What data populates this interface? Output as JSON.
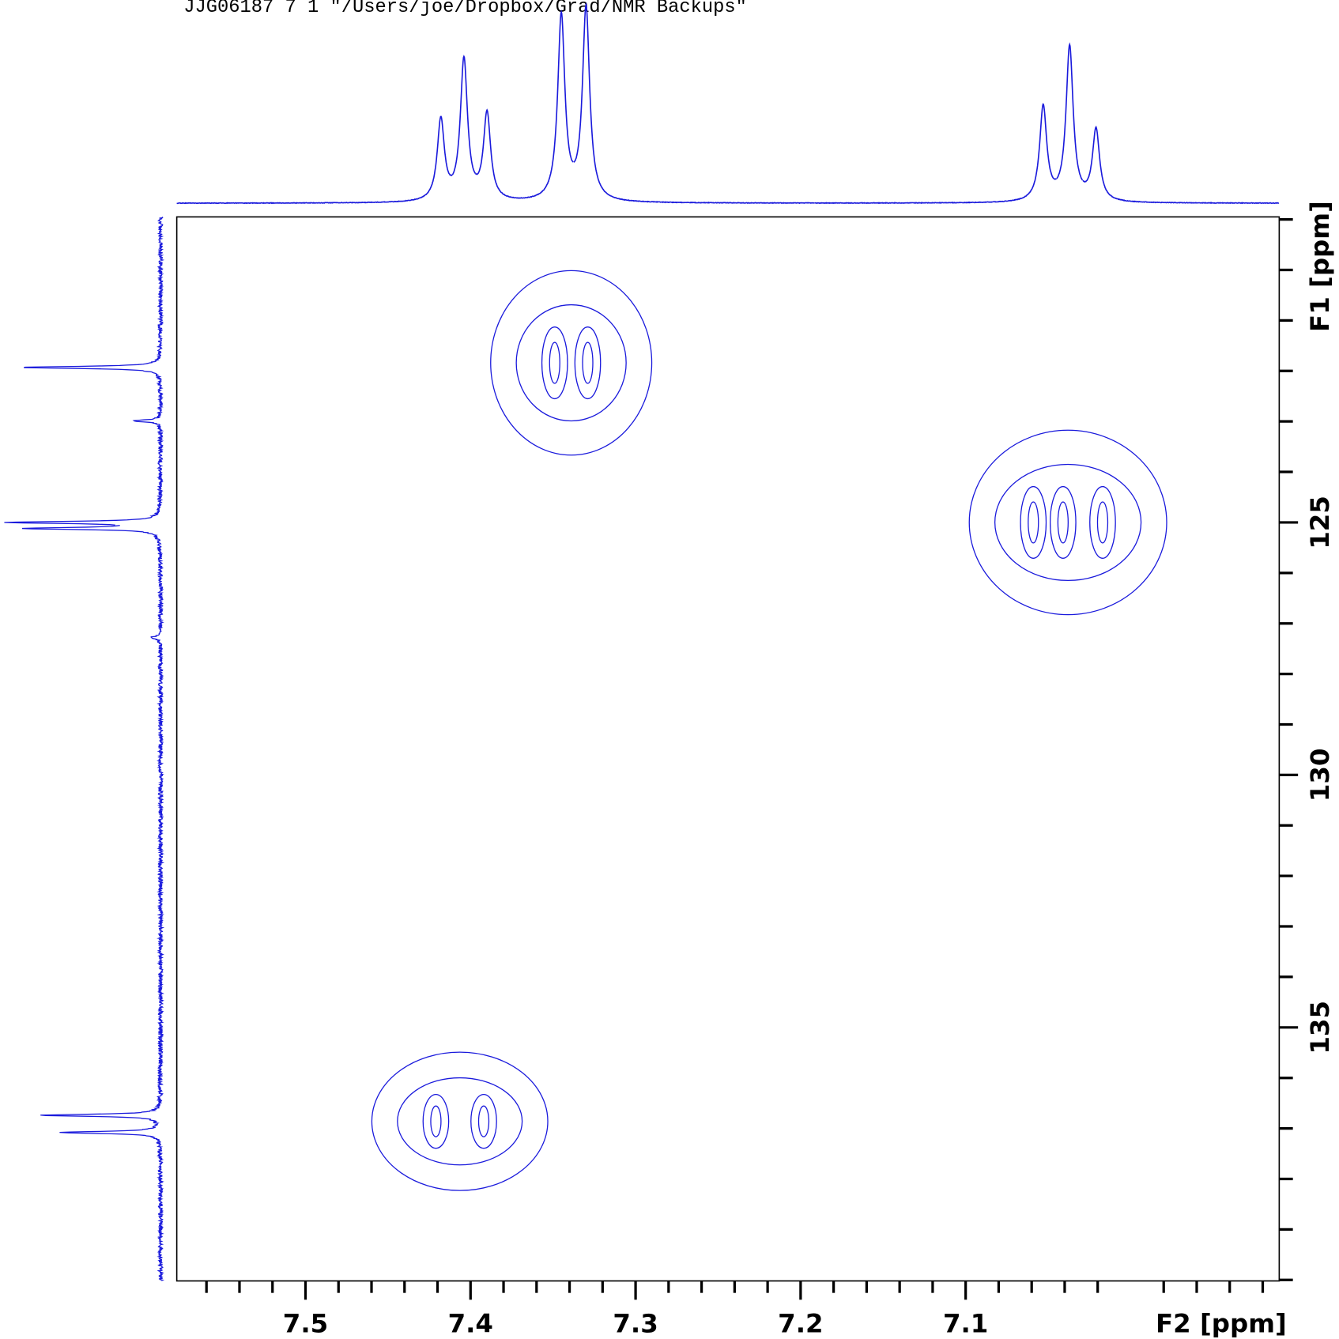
{
  "chart_data": {
    "type": "hsqc",
    "header": "JJG06187  7  1  \"/Users/joe/Dropbox/Grad/NMR Backups\"",
    "xlabel": "F2 [ppm]",
    "ylabel": "F1 [ppm]",
    "color": "#1a1adc",
    "xlim": [
      7.578,
      6.91
    ],
    "ylim": [
      118.95,
      140.02
    ],
    "xticks": [
      7.5,
      7.4,
      7.3,
      7.2,
      7.1
    ],
    "xticks_minor": [
      7.56,
      7.54,
      7.52,
      7.48,
      7.46,
      7.44,
      7.42,
      7.38,
      7.36,
      7.34,
      7.32,
      7.28,
      7.26,
      7.24,
      7.22,
      7.18,
      7.16,
      7.14,
      7.12,
      7.08,
      7.06,
      7.04,
      7.02,
      6.98,
      6.96,
      6.94,
      6.92
    ],
    "yticks": [
      125,
      130,
      135
    ],
    "yticks_minor": [
      119,
      120,
      121,
      122,
      123,
      124,
      126,
      127,
      128,
      129,
      131,
      132,
      133,
      134,
      136,
      137,
      138,
      139,
      140
    ],
    "cross_peaks": [
      {
        "f2": [
          7.349,
          7.329
        ],
        "f1": 121.84
      },
      {
        "f2": [
          7.059,
          7.041,
          7.017
        ],
        "f1": 125.0
      },
      {
        "f2": [
          7.421,
          7.392
        ],
        "f1": 136.86
      }
    ],
    "f2_projection": {
      "peaks": [
        {
          "ppm": 7.418,
          "height": 42
        },
        {
          "ppm": 7.404,
          "height": 73
        },
        {
          "ppm": 7.39,
          "height": 45
        },
        {
          "ppm": 7.345,
          "height": 96
        },
        {
          "ppm": 7.33,
          "height": 100
        },
        {
          "ppm": 7.053,
          "height": 49
        },
        {
          "ppm": 7.037,
          "height": 80
        },
        {
          "ppm": 7.021,
          "height": 37
        }
      ]
    },
    "f1_projection": {
      "peaks": [
        {
          "ppm": 121.93,
          "height": 92
        },
        {
          "ppm": 122.99,
          "height": 17
        },
        {
          "ppm": 125.0,
          "height": 100
        },
        {
          "ppm": 125.12,
          "height": 88
        },
        {
          "ppm": 127.28,
          "height": 7
        },
        {
          "ppm": 136.74,
          "height": 79
        },
        {
          "ppm": 137.08,
          "height": 67
        }
      ]
    }
  }
}
